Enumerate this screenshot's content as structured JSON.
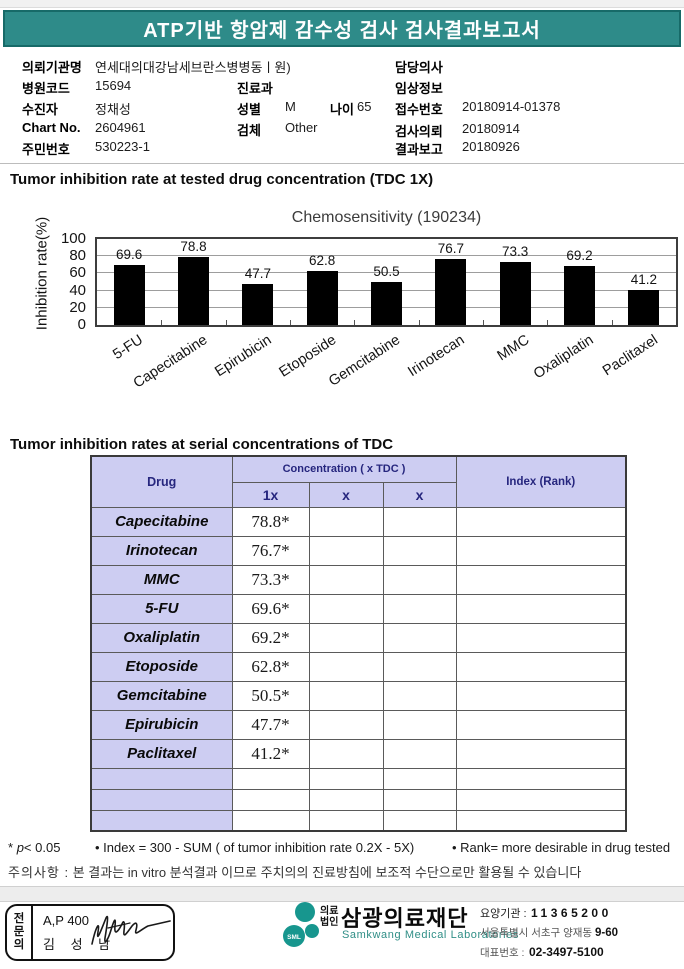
{
  "colors": {
    "accent_teal": "#2e8b89",
    "lavender": "#cdcdf2",
    "navy": "#26267e",
    "bar_black": "#000000"
  },
  "header": {
    "title": "ATP기반 항암제 감수성 검사 검사결과보고서"
  },
  "patient": {
    "org_label": "의뢰기관명",
    "org": "연세대의대강남세브란스병병동ㅣ원)",
    "hospital_code_label": "병원코드",
    "hospital_code": "15694",
    "patient_label": "수진자",
    "patient_name": "정채성",
    "chart_no_label": "Chart No.",
    "chart_no": "2604961",
    "resident_no_label": "주민번호",
    "resident_no": "530223-1",
    "dept_label": "진료과",
    "dept": "",
    "sex_label": "성별",
    "sex": "M",
    "age_label": "나이",
    "age": "65",
    "specimen_label": "검체",
    "specimen": "Other",
    "doctor_label": "담당의사",
    "doctor": "",
    "clinical_label": "임상정보",
    "clinical": "",
    "receipt_label": "접수번호",
    "receipt_no": "20180914-01378",
    "request_label": "검사의뢰",
    "request_date": "20180914",
    "report_label": "결과보고",
    "report_date": "20180926"
  },
  "sections": {
    "chart_heading": "Tumor inhibition rate at tested drug concentration (TDC 1X)",
    "table_heading": "Tumor inhibition rates at serial concentrations of TDC"
  },
  "chart_data": {
    "type": "bar",
    "title": "Chemosensitivity (190234)",
    "ylabel": "Inhibition rate(%)",
    "categories": [
      "5-FU",
      "Capecitabine",
      "Epirubicin",
      "Etoposide",
      "Gemcitabine",
      "Irinotecan",
      "MMC",
      "Oxaliplatin",
      "Paclitaxel"
    ],
    "values": [
      69.6,
      78.8,
      47.7,
      62.8,
      50.5,
      76.7,
      73.3,
      69.2,
      41.2
    ],
    "yticks": [
      0,
      20,
      40,
      60,
      80,
      100
    ],
    "ylim": [
      0,
      100
    ],
    "grid": true,
    "legend": "none",
    "bar_color": "#000000"
  },
  "table": {
    "col_drug": "Drug",
    "col_concentration": "Concentration ( x TDC )",
    "col_index": "Index (Rank)",
    "sub1": "1x",
    "sub2": "x",
    "sub3": "x",
    "rows": [
      {
        "drug": "Capecitabine",
        "c1": "78.8*",
        "c2": "",
        "c3": "",
        "index": ""
      },
      {
        "drug": "Irinotecan",
        "c1": "76.7*",
        "c2": "",
        "c3": "",
        "index": ""
      },
      {
        "drug": "MMC",
        "c1": "73.3*",
        "c2": "",
        "c3": "",
        "index": ""
      },
      {
        "drug": "5-FU",
        "c1": "69.6*",
        "c2": "",
        "c3": "",
        "index": ""
      },
      {
        "drug": "Oxaliplatin",
        "c1": "69.2*",
        "c2": "",
        "c3": "",
        "index": ""
      },
      {
        "drug": "Etoposide",
        "c1": "62.8*",
        "c2": "",
        "c3": "",
        "index": ""
      },
      {
        "drug": "Gemcitabine",
        "c1": "50.5*",
        "c2": "",
        "c3": "",
        "index": ""
      },
      {
        "drug": "Epirubicin",
        "c1": "47.7*",
        "c2": "",
        "c3": "",
        "index": ""
      },
      {
        "drug": "Paclitaxel",
        "c1": "41.2*",
        "c2": "",
        "c3": "",
        "index": ""
      },
      {
        "drug": "",
        "c1": "",
        "c2": "",
        "c3": "",
        "index": ""
      },
      {
        "drug": "",
        "c1": "",
        "c2": "",
        "c3": "",
        "index": ""
      },
      {
        "drug": "",
        "c1": "",
        "c2": "",
        "c3": "",
        "index": ""
      }
    ]
  },
  "notes": {
    "sig_marker": "*",
    "sig_p": "p",
    "sig_rest": "< 0.05",
    "index_note": "• Index = 300 - SUM ( of tumor inhibition rate 0.2X  -  5X)",
    "rank_note": "• Rank= more desirable in drug tested",
    "caution_label": "주의사항 :",
    "caution_text": "본 결과는 in vitro 분석결과 이므로 주치의의 진료방침에 보조적 수단으로만 활용될 수 있습니다"
  },
  "footer": {
    "signature": {
      "role": "전문의",
      "line1": "A,P 400",
      "line2": "김 성 남"
    },
    "logo": {
      "sml": "SML",
      "type1": "의료",
      "type2": "법인",
      "name": "삼광의료재단",
      "name_en": "Samkwang Medical Laboratories"
    },
    "info": {
      "acc_label": "요양기관 :",
      "acc_no": "11365200",
      "addr": "서울특별시 서초구 양재동",
      "addr_no": "9-60",
      "tel_label": "대표번호 :",
      "tel": "02-3497-5100"
    }
  }
}
